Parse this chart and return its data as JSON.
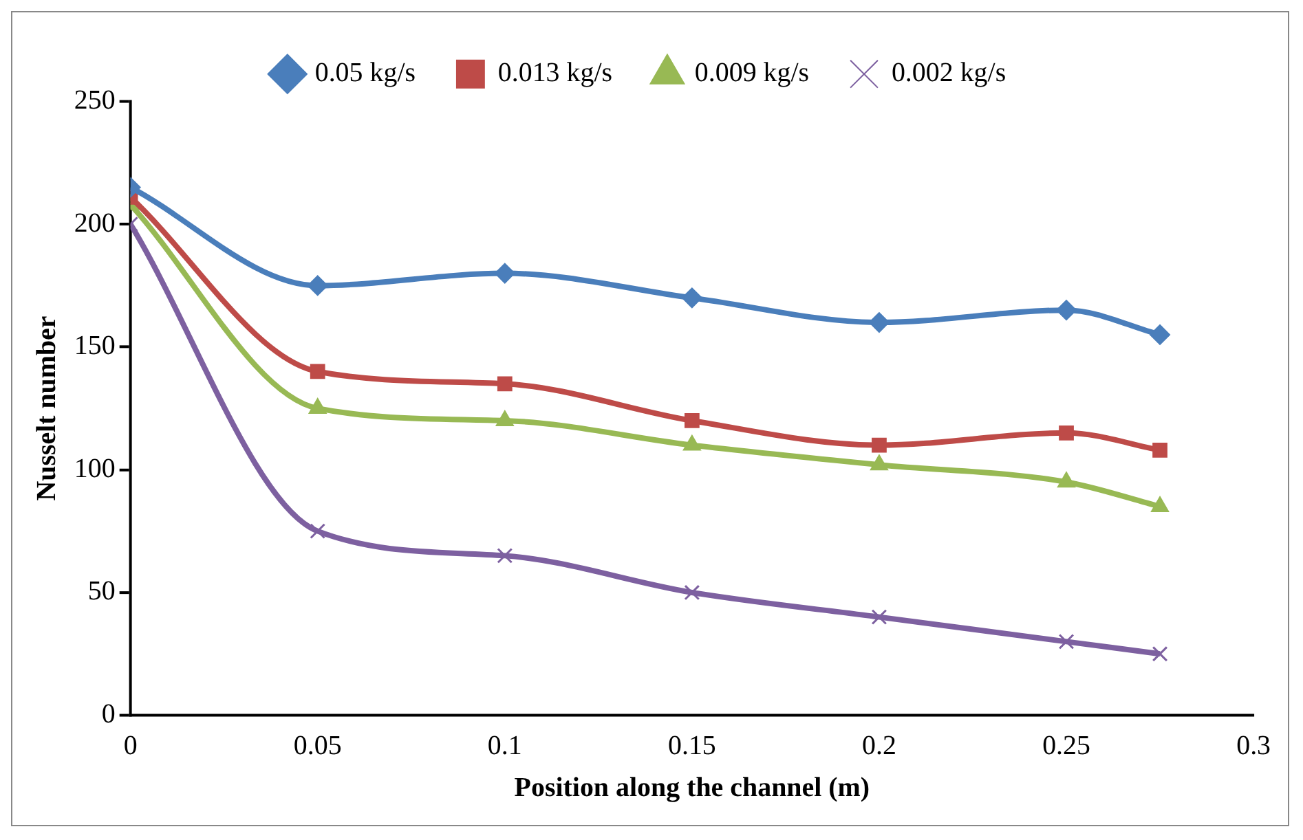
{
  "chart_data": {
    "type": "line",
    "xlabel": "Position along the channel (m)",
    "ylabel": "Nusselt number",
    "x": [
      0,
      0.05,
      0.1,
      0.15,
      0.2,
      0.25,
      0.275
    ],
    "xlim": [
      0,
      0.3
    ],
    "xticks": [
      0,
      0.05,
      0.1,
      0.15,
      0.2,
      0.25,
      0.3
    ],
    "ylim": [
      0,
      250
    ],
    "yticks": [
      0,
      50,
      100,
      150,
      200,
      250
    ],
    "grid": false,
    "legend": "top",
    "series": [
      {
        "name": "0.05 kg/s",
        "color": "#4a7ebb",
        "marker": "diamond",
        "values": [
          215,
          175,
          180,
          170,
          160,
          165,
          155
        ]
      },
      {
        "name": "0.013 kg/s",
        "color": "#be4b48",
        "marker": "square",
        "values": [
          211,
          140,
          135,
          120,
          110,
          115,
          108
        ]
      },
      {
        "name": "0.009 kg/s",
        "color": "#98b954",
        "marker": "triangle",
        "values": [
          208,
          125,
          120,
          110,
          102,
          95,
          85
        ]
      },
      {
        "name": "0.002 kg/s",
        "color": "#7d60a0",
        "marker": "cross",
        "values": [
          200,
          75,
          65,
          50,
          40,
          30,
          25
        ]
      }
    ]
  }
}
